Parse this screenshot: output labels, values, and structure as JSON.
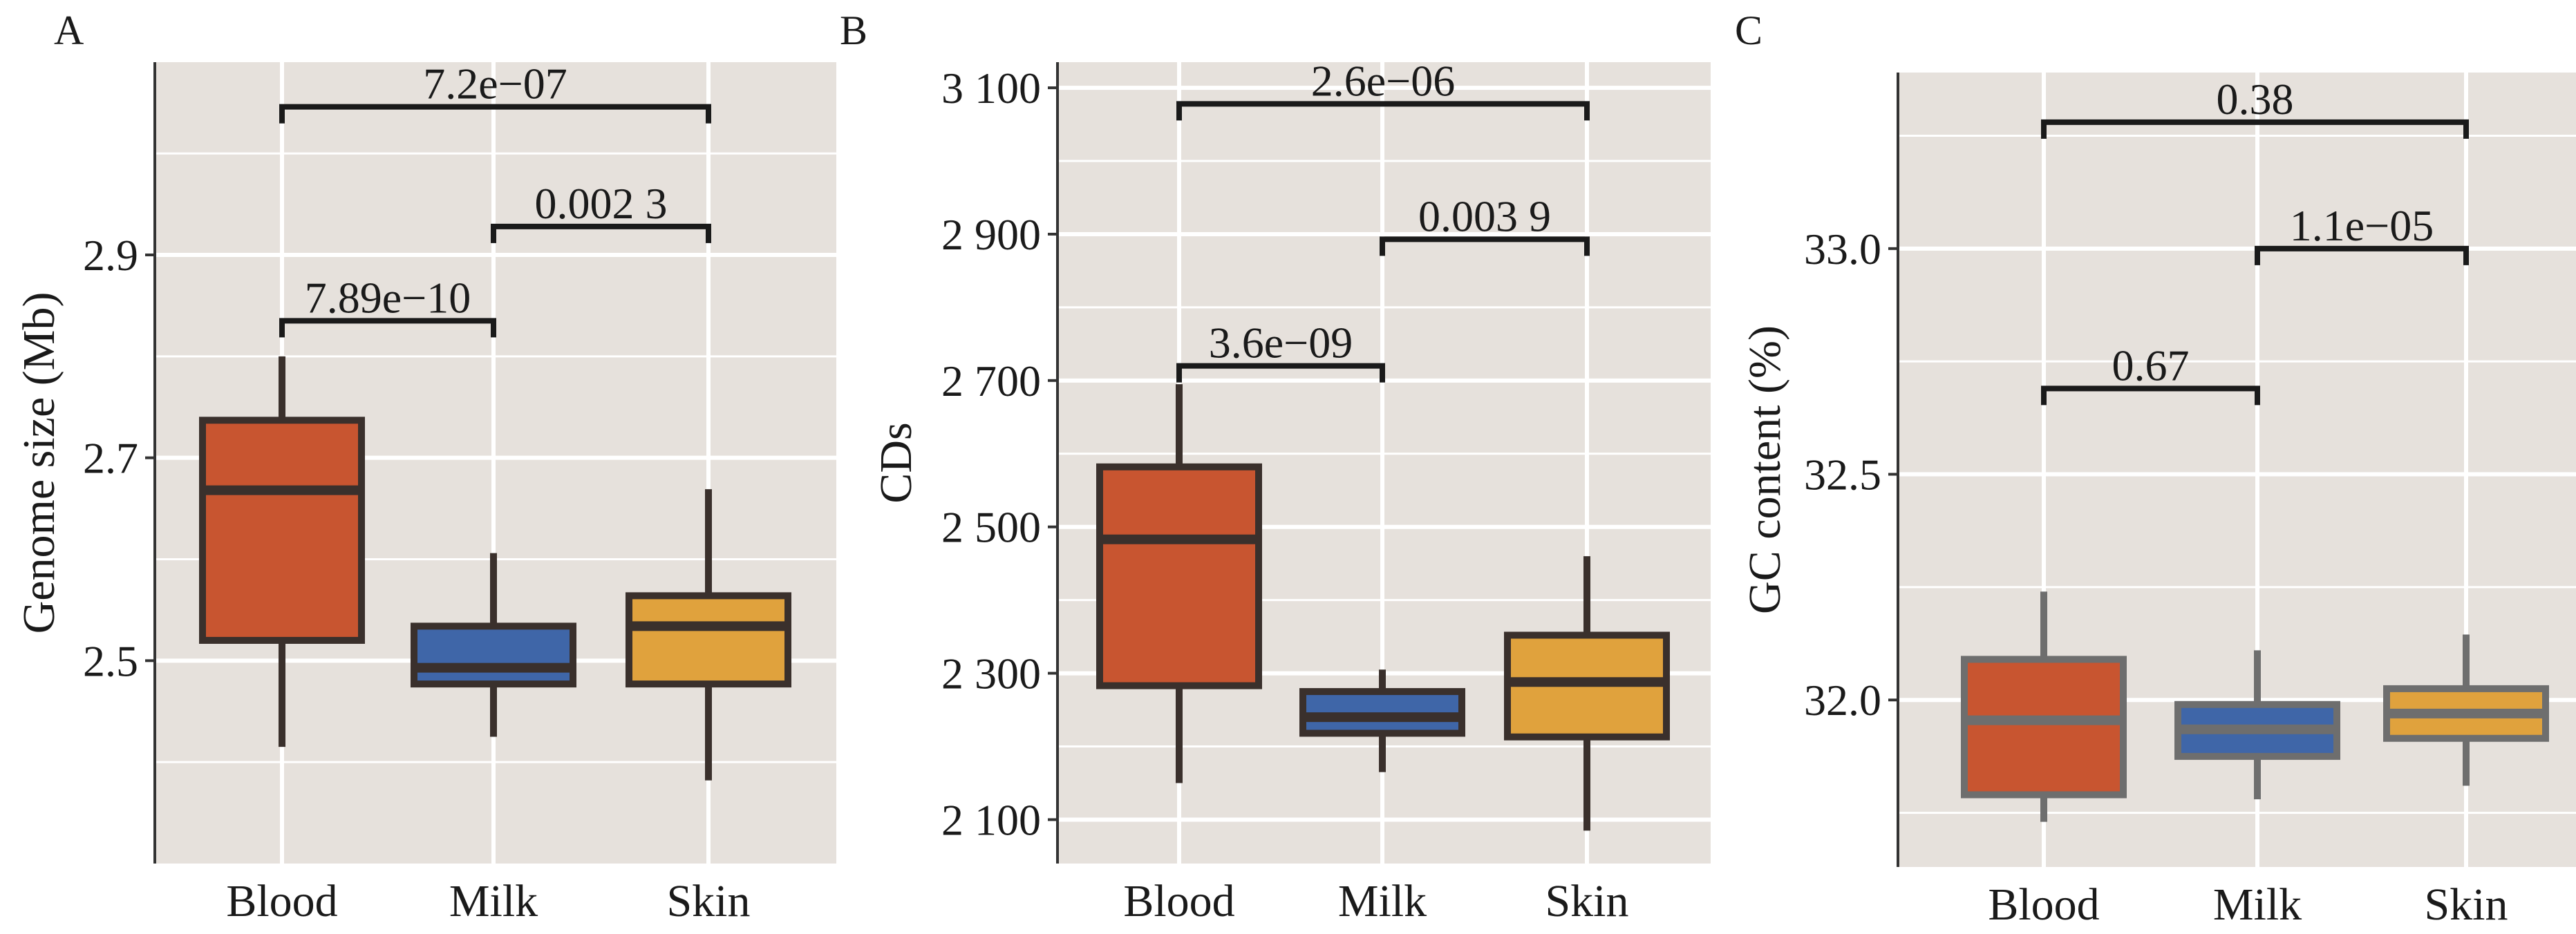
{
  "chart_data": [
    {
      "type": "box",
      "panel": "A",
      "ylabel": "Genome size (Mb)",
      "ylim": [
        2.3,
        3.09
      ],
      "yticks": [
        2.5,
        2.7,
        2.9
      ],
      "ytick_labels": [
        "2.5",
        "2.7",
        "2.9"
      ],
      "categories": [
        "Blood",
        "Milk",
        "Skin"
      ],
      "colors": [
        "#c85530",
        "#3f66a8",
        "#e0a23d"
      ],
      "box_stroke": "#3a302c",
      "boxes": [
        {
          "whisker_low": 2.415,
          "q1": 2.52,
          "median": 2.668,
          "q3": 2.737,
          "whisker_high": 2.8
        },
        {
          "whisker_low": 2.425,
          "q1": 2.477,
          "median": 2.493,
          "q3": 2.534,
          "whisker_high": 2.606
        },
        {
          "whisker_low": 2.382,
          "q1": 2.477,
          "median": 2.534,
          "q3": 2.564,
          "whisker_high": 2.669
        }
      ],
      "comparisons": [
        {
          "from": "Blood",
          "to": "Milk",
          "y": 2.835,
          "label": "7.89e−10"
        },
        {
          "from": "Milk",
          "to": "Skin",
          "y": 2.928,
          "label": "0.002 3"
        },
        {
          "from": "Blood",
          "to": "Skin",
          "y": 3.046,
          "label": "7.2e−07"
        }
      ]
    },
    {
      "type": "box",
      "panel": "B",
      "ylabel": "CDs",
      "ylim": [
        2040,
        3135
      ],
      "yticks": [
        2100,
        2300,
        2500,
        2700,
        2900,
        3100
      ],
      "ytick_labels": [
        "2 100",
        "2 300",
        "2 500",
        "2 700",
        "2 900",
        "3 100"
      ],
      "categories": [
        "Blood",
        "Milk",
        "Skin"
      ],
      "colors": [
        "#c85530",
        "#3f66a8",
        "#e0a23d"
      ],
      "box_stroke": "#3a302c",
      "boxes": [
        {
          "whisker_low": 2150,
          "q1": 2283,
          "median": 2483,
          "q3": 2582,
          "whisker_high": 2695
        },
        {
          "whisker_low": 2165,
          "q1": 2218,
          "median": 2240,
          "q3": 2275,
          "whisker_high": 2305
        },
        {
          "whisker_low": 2085,
          "q1": 2213,
          "median": 2288,
          "q3": 2352,
          "whisker_high": 2460
        }
      ],
      "comparisons": [
        {
          "from": "Blood",
          "to": "Milk",
          "y": 2720,
          "label": "3.6e−09"
        },
        {
          "from": "Milk",
          "to": "Skin",
          "y": 2893,
          "label": "0.003 9"
        },
        {
          "from": "Blood",
          "to": "Skin",
          "y": 3078,
          "label": "2.6e−06"
        }
      ]
    },
    {
      "type": "box",
      "panel": "C",
      "ylabel": "GC content  (%)",
      "ylim": [
        31.63,
        33.39
      ],
      "yticks": [
        32.0,
        32.5,
        33.0
      ],
      "ytick_labels": [
        "32.0",
        "32.5",
        "33.0"
      ],
      "categories": [
        "Blood",
        "Milk",
        "Skin"
      ],
      "colors": [
        "#c85530",
        "#3f66a8",
        "#e0a23d"
      ],
      "box_stroke": "#6e6e6e",
      "boxes": [
        {
          "whisker_low": 31.73,
          "q1": 31.79,
          "median": 31.955,
          "q3": 32.09,
          "whisker_high": 32.24
        },
        {
          "whisker_low": 31.78,
          "q1": 31.875,
          "median": 31.935,
          "q3": 31.99,
          "whisker_high": 32.11
        },
        {
          "whisker_low": 31.81,
          "q1": 31.915,
          "median": 31.97,
          "q3": 32.025,
          "whisker_high": 32.145
        }
      ],
      "comparisons": [
        {
          "from": "Blood",
          "to": "Milk",
          "y": 32.69,
          "label": "0.67"
        },
        {
          "from": "Milk",
          "to": "Skin",
          "y": 33.0,
          "label": "1.1e−05"
        },
        {
          "from": "Blood",
          "to": "Skin",
          "y": 33.28,
          "label": "0.38"
        }
      ]
    }
  ],
  "colors": {
    "panel_background": "#e6e1dc",
    "grid": "#ffffff",
    "axis": "#333333",
    "bracket": "#1a1a1a"
  }
}
